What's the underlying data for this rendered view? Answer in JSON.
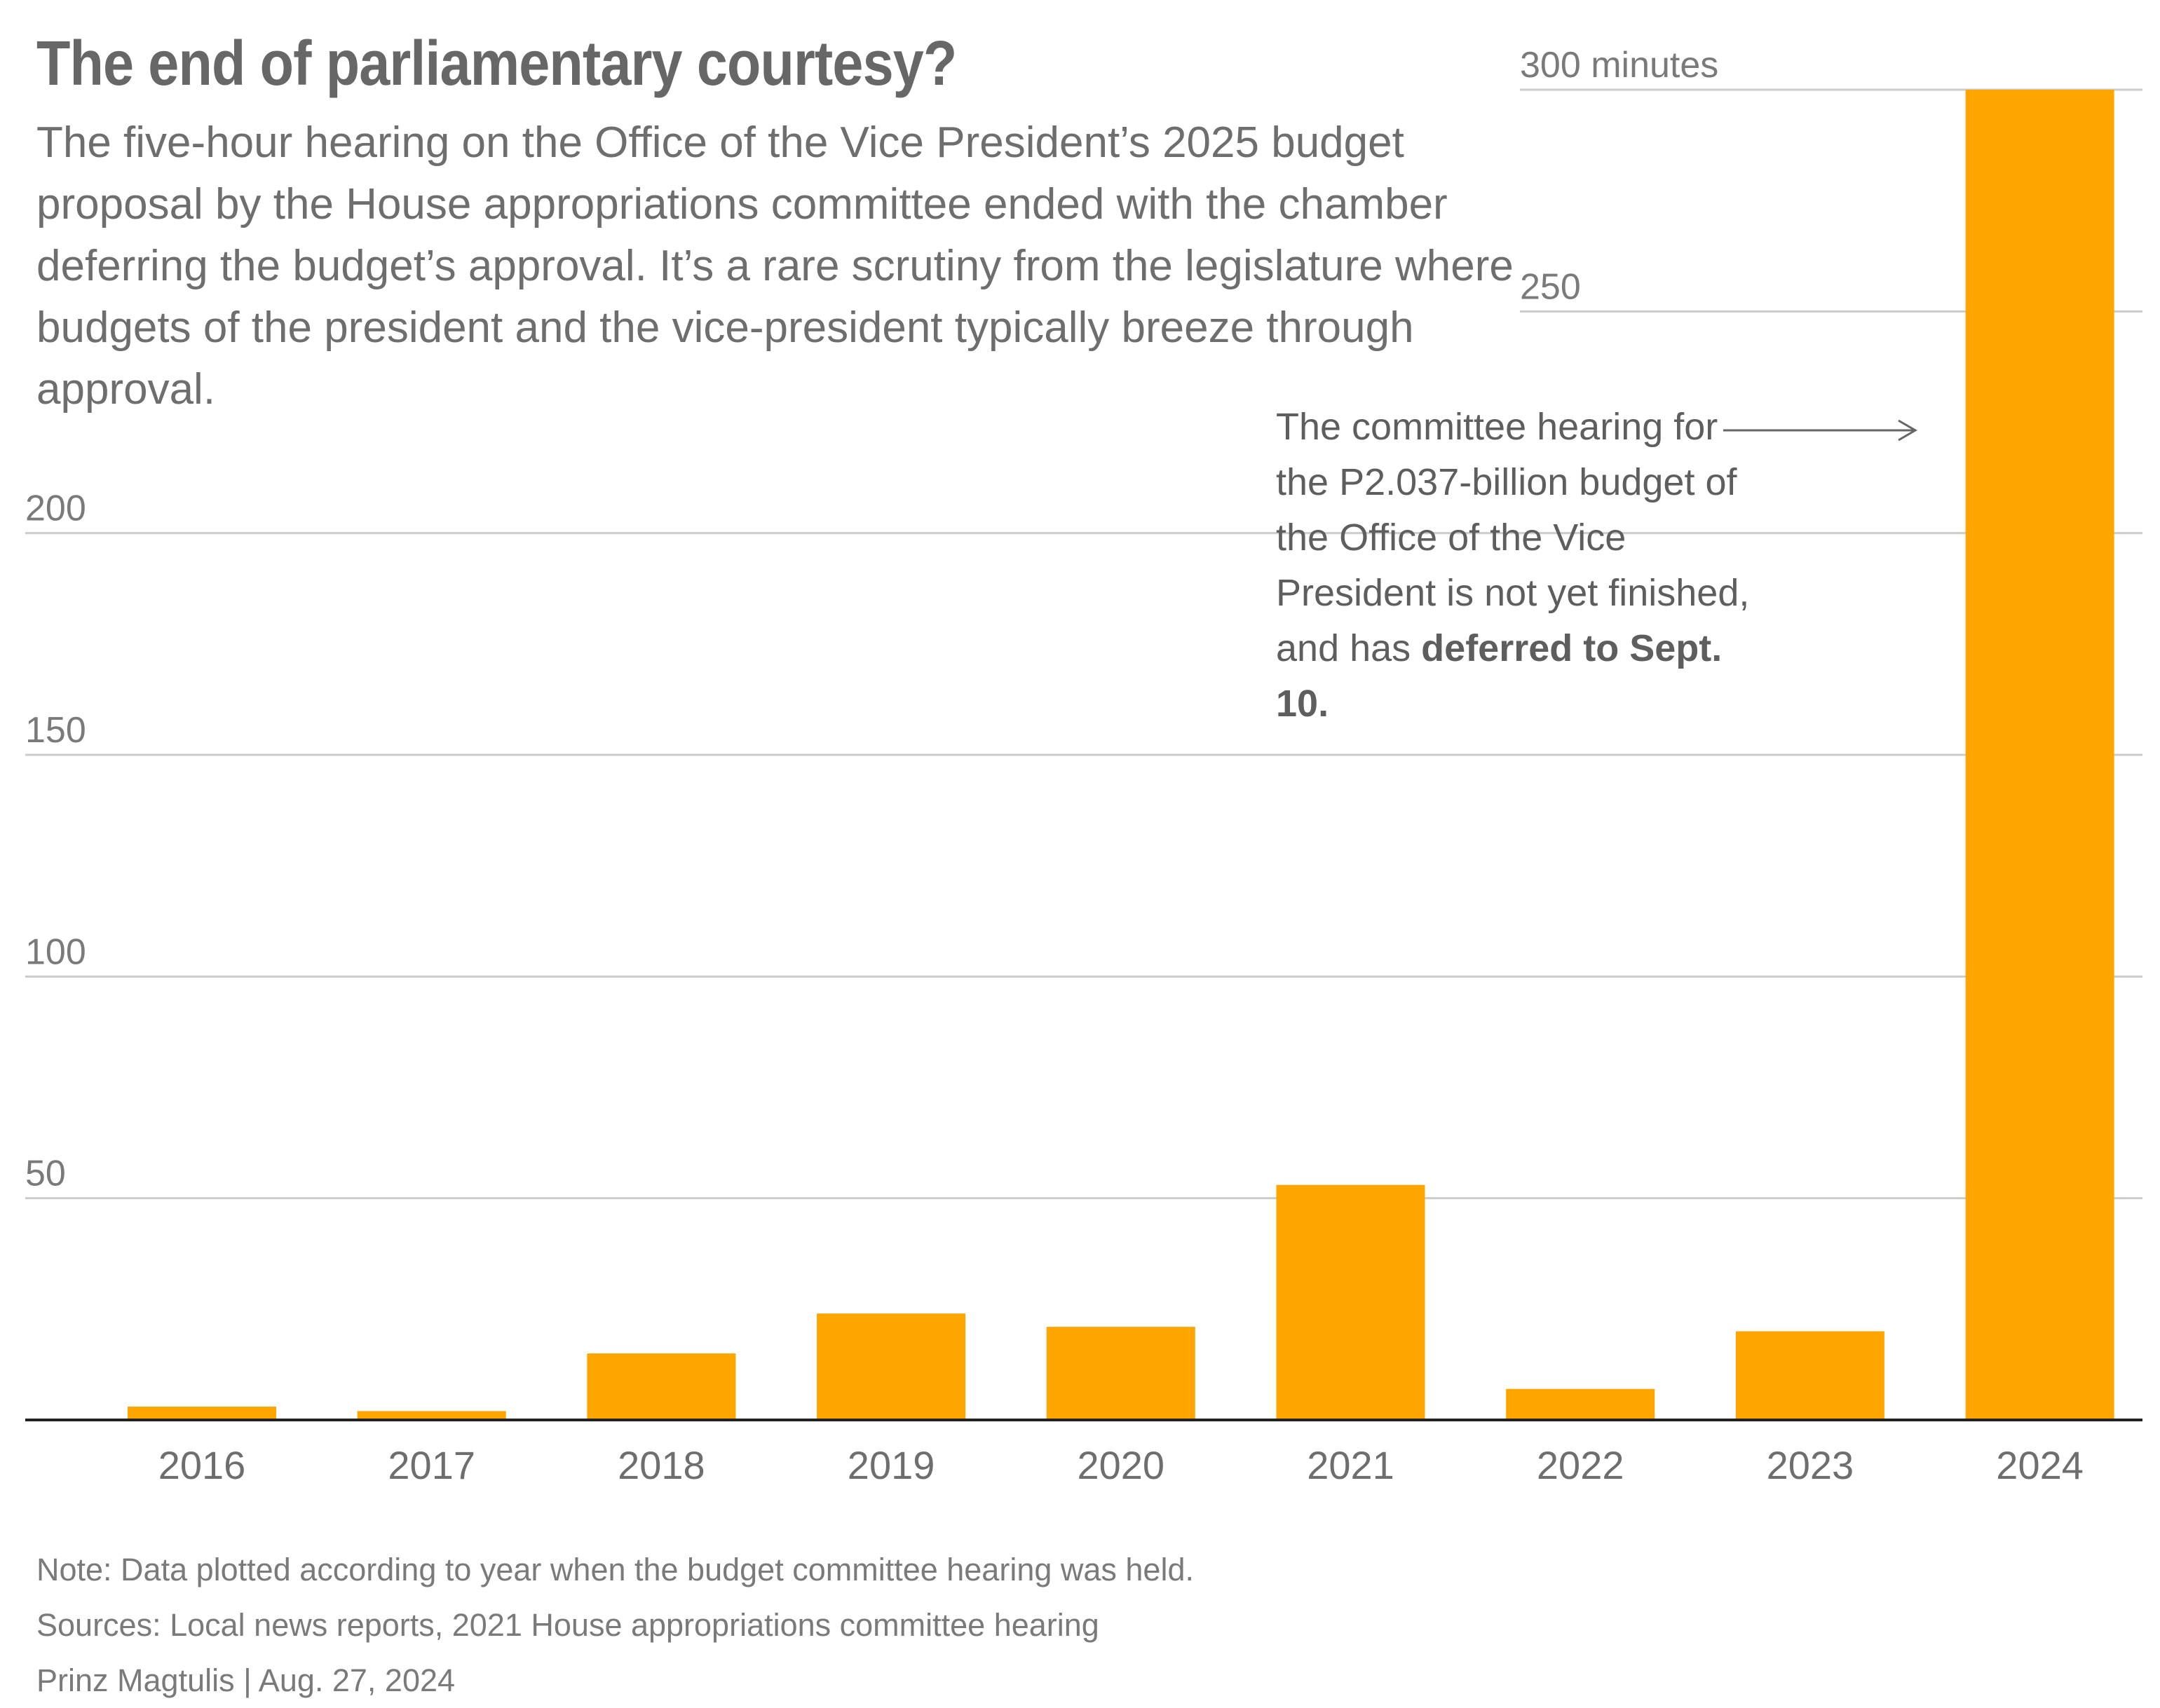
{
  "title": "The end of parliamentary courtesy?",
  "subtitle": "The five-hour hearing on the Office of the Vice President’s 2025 budget proposal by the House appropriations committee ended with the chamber deferring the budget’s approval. It’s a rare scrutiny from the legislature where budgets of the president and the vice-president typically breeze through approval.",
  "annotation": {
    "text": "The committee hearing for the P2.037-billion budget of the Office of the Vice President is not yet finished, and has ",
    "bold": "deferred to Sept. 10."
  },
  "footer": {
    "note": "Note: Data plotted according to year when the budget committee hearing was held.",
    "sources": "Sources: Local news reports, 2021 House appropriations committee hearing",
    "byline": "Prinz Magtulis | Aug. 27, 2024"
  },
  "colors": {
    "bar": "#FFA500",
    "grid": "#cccccc",
    "baseline": "#222222",
    "arrow": "#666666"
  },
  "chart_data": {
    "type": "bar",
    "categories": [
      "2016",
      "2017",
      "2018",
      "2019",
      "2020",
      "2021",
      "2022",
      "2023",
      "2024"
    ],
    "values": [
      3,
      2,
      15,
      24,
      21,
      53,
      7,
      20,
      300
    ],
    "ylim": [
      0,
      300
    ],
    "yticks": [
      50,
      100,
      150,
      200,
      250,
      300
    ],
    "ytick_labels": [
      "50",
      "100",
      "150",
      "200",
      "250",
      "300 minutes"
    ],
    "grid": true,
    "xlabel": "",
    "ylabel": ""
  }
}
